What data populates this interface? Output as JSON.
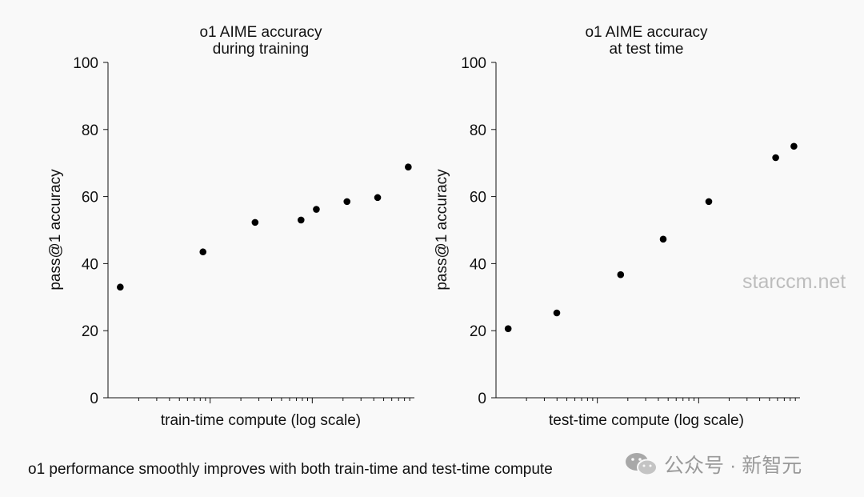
{
  "caption": "o1 performance smoothly improves with both train-time and test-time compute",
  "watermarks": {
    "site": "starccm.net",
    "brand": "公众号 · 新智元",
    "brand_icon": "wechat-icon"
  },
  "colors": {
    "background": "#f9f9f9",
    "points": "#000000",
    "axis": "#111111",
    "watermark": "#9a9a9a"
  },
  "chart_data": [
    {
      "type": "scatter",
      "title_lines": [
        "o1 AIME accuracy",
        "during training"
      ],
      "xlabel": "train-time compute (log scale)",
      "ylabel": "pass@1 accuracy",
      "x_scale": "log",
      "x_tick_labels": "none",
      "ylim": [
        0,
        100
      ],
      "yticks": [
        0,
        20,
        40,
        60,
        80,
        100
      ],
      "grid": false,
      "points": [
        {
          "x": 0.04,
          "y": 33
        },
        {
          "x": 0.31,
          "y": 43.5
        },
        {
          "x": 0.48,
          "y": 52.3
        },
        {
          "x": 0.63,
          "y": 53
        },
        {
          "x": 0.68,
          "y": 56.2
        },
        {
          "x": 0.78,
          "y": 58.5
        },
        {
          "x": 0.88,
          "y": 59.7
        },
        {
          "x": 0.98,
          "y": 68.8
        }
      ]
    },
    {
      "type": "scatter",
      "title_lines": [
        "o1 AIME accuracy",
        "at test time"
      ],
      "xlabel": "test-time compute (log scale)",
      "ylabel": "pass@1 accuracy",
      "x_scale": "log",
      "x_tick_labels": "none",
      "ylim": [
        0,
        100
      ],
      "yticks": [
        0,
        20,
        40,
        60,
        80,
        100
      ],
      "grid": false,
      "points": [
        {
          "x": 0.04,
          "y": 20.6
        },
        {
          "x": 0.2,
          "y": 25.3
        },
        {
          "x": 0.41,
          "y": 36.7
        },
        {
          "x": 0.55,
          "y": 47.3
        },
        {
          "x": 0.7,
          "y": 58.5
        },
        {
          "x": 0.92,
          "y": 71.6
        },
        {
          "x": 0.98,
          "y": 75
        }
      ]
    }
  ]
}
